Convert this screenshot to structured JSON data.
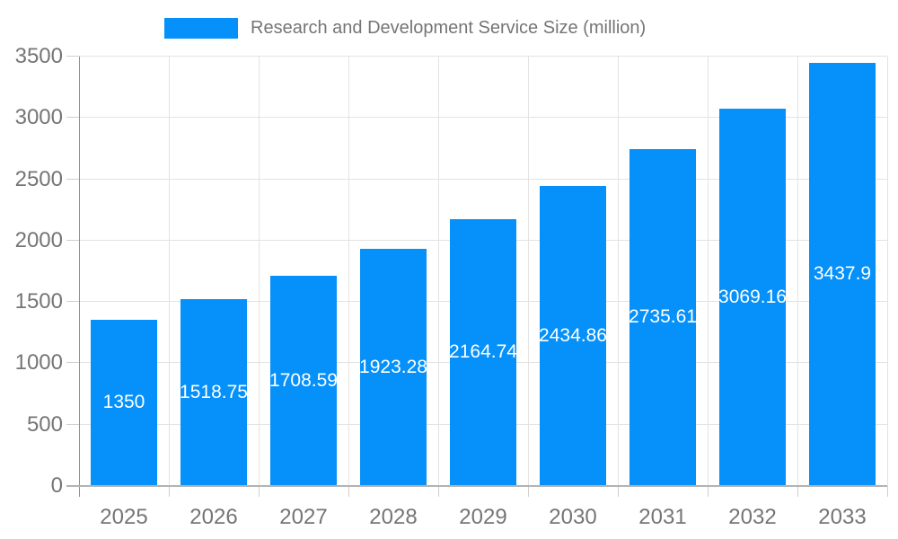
{
  "colors": {
    "bg": "#ffffff",
    "bar": "#0590fa",
    "grid": "#e3e3e3",
    "axis_y": "#909090",
    "axis_x": "#b3b3b3",
    "tick": "#cfcfcf",
    "text": "#757575",
    "value_label": "#ffffff"
  },
  "chart_data": {
    "type": "bar",
    "title": "Research and Development Service Size (million)",
    "legend": {
      "position": "top",
      "items": [
        {
          "label": "Research and Development Service Size (million)",
          "color": "#0590fa"
        }
      ]
    },
    "categories": [
      "2025",
      "2026",
      "2027",
      "2028",
      "2029",
      "2030",
      "2031",
      "2032",
      "2033"
    ],
    "series": [
      {
        "name": "Research and Development Service Size (million)",
        "values": [
          1350,
          1518.75,
          1708.59,
          1923.28,
          2164.74,
          2434.86,
          2735.61,
          3069.16,
          3437.9
        ],
        "value_labels": [
          "1350",
          "1518.75",
          "1708.59",
          "1923.28",
          "2164.74",
          "2434.86",
          "2735.61",
          "3069.16",
          "3437.9"
        ]
      }
    ],
    "xlabel": "",
    "ylabel": "",
    "ylim": [
      0,
      3500
    ],
    "y_ticks": [
      0,
      500,
      1000,
      1500,
      2000,
      2500,
      3000,
      3500
    ],
    "grid": true,
    "value_labels_position": "inside-center",
    "value_labels_color": "#ffffff"
  }
}
